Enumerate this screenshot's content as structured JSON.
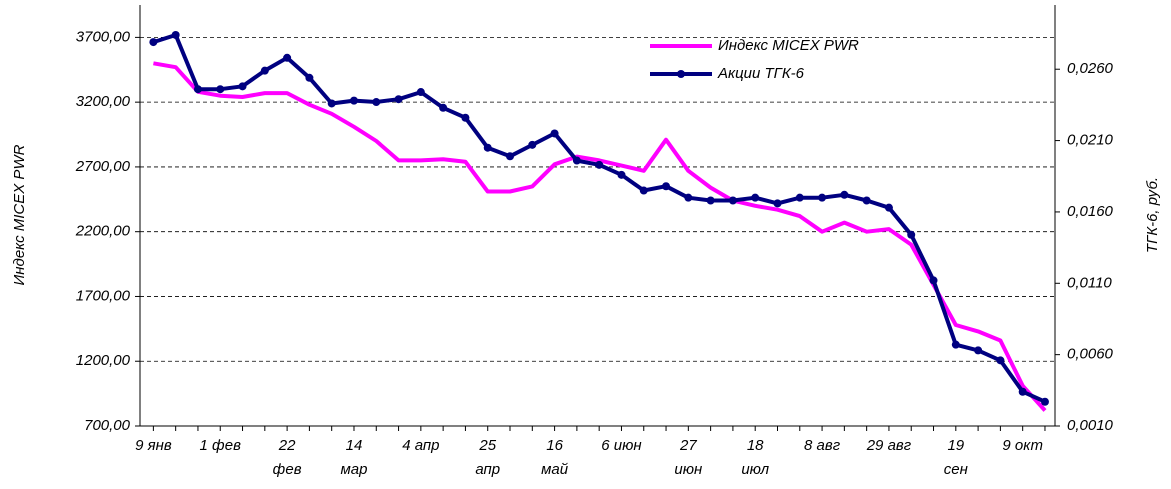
{
  "chart_data": {
    "type": "line",
    "ylabel": "Индекс MICEX PWR",
    "y2label": "ТГК-6, руб.",
    "categories": [
      "9 янв",
      null,
      null,
      "1 фев",
      null,
      null,
      "22\nфев",
      null,
      null,
      "14\nмар",
      null,
      null,
      "4 апр",
      null,
      null,
      "25\nапр",
      null,
      null,
      "16\nмай",
      null,
      null,
      "6 июн",
      null,
      null,
      "27\nиюн",
      null,
      null,
      "18\nиюл",
      null,
      null,
      "8 авг",
      null,
      null,
      "29 авг",
      null,
      null,
      "19\nсен",
      null,
      null,
      "9 окт",
      null
    ],
    "series": [
      {
        "name": "Индекс MICEX PWR",
        "color": "#ff00ff",
        "axis": "y",
        "values": [
          3500,
          3470,
          3280,
          3250,
          3240,
          3270,
          3270,
          3180,
          3110,
          3010,
          2900,
          2750,
          2750,
          2760,
          2740,
          2510,
          2510,
          2550,
          2720,
          2780,
          2750,
          2710,
          2670,
          2910,
          2670,
          2540,
          2440,
          2400,
          2370,
          2320,
          2200,
          2270,
          2200,
          2220,
          2100,
          1790,
          1480,
          1430,
          1360,
          1010,
          820
        ]
      },
      {
        "name": "Акции ТГК-6",
        "color": "#000080",
        "axis": "y2",
        "values": [
          0.0279,
          0.0284,
          0.0246,
          0.0246,
          0.0248,
          0.0259,
          0.0268,
          0.0254,
          0.0236,
          0.0238,
          0.0237,
          0.0239,
          0.0244,
          0.0233,
          0.0226,
          0.0205,
          0.0199,
          0.0207,
          0.0215,
          0.0196,
          0.0193,
          0.0186,
          0.0175,
          0.0178,
          0.017,
          0.0168,
          0.0168,
          0.017,
          0.0166,
          0.017,
          0.017,
          0.0172,
          0.0168,
          0.0163,
          0.0144,
          0.0112,
          0.0067,
          0.0063,
          0.0056,
          0.0034,
          0.0027
        ]
      }
    ],
    "ylim": [
      700,
      3950
    ],
    "yticks": [
      {
        "value": 700,
        "label": "700,00"
      },
      {
        "value": 1200,
        "label": "1200,00"
      },
      {
        "value": 1700,
        "label": "1700,00"
      },
      {
        "value": 2200,
        "label": "2200,00"
      },
      {
        "value": 2700,
        "label": "2700,00"
      },
      {
        "value": 3200,
        "label": "3200,00"
      },
      {
        "value": 3700,
        "label": "3700,00"
      }
    ],
    "y2lim": [
      0.001,
      0.0305
    ],
    "y2ticks": [
      {
        "value": 0.001,
        "label": "0,0010"
      },
      {
        "value": 0.006,
        "label": "0,0060"
      },
      {
        "value": 0.011,
        "label": "0,0110"
      },
      {
        "value": 0.016,
        "label": "0,0160"
      },
      {
        "value": 0.021,
        "label": "0,0210"
      },
      {
        "value": 0.026,
        "label": "0,0260"
      }
    ],
    "grid": true,
    "legend": "top-right"
  }
}
